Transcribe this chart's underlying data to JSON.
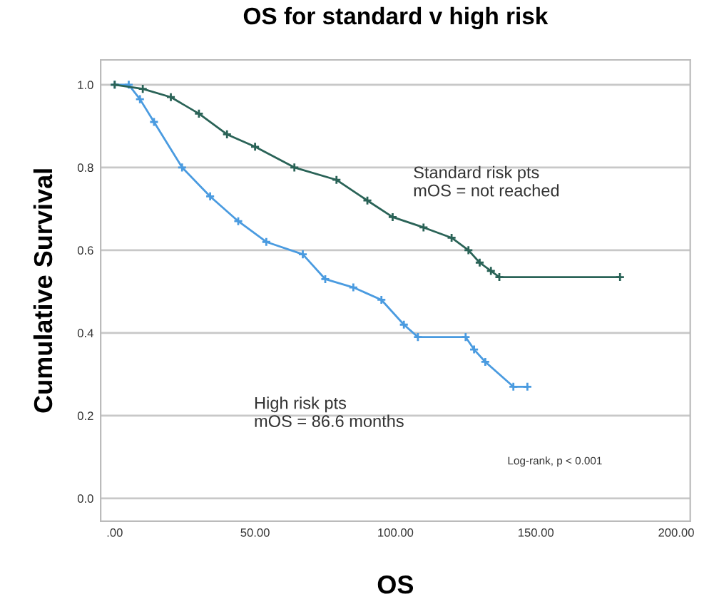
{
  "chart_data": {
    "type": "line",
    "title": "OS for standard v high risk",
    "xlabel": "OS",
    "ylabel": "Cumulative Survival",
    "annotations": [
      "Standard risk pts\nmOS = not reached",
      "High risk pts\nmOS = 86.6 months",
      "Log-rank, p < 0.001"
    ],
    "series": [
      {
        "color": "#2a6357",
        "x": [
          0,
          10,
          20,
          30,
          40,
          50,
          64,
          79,
          90,
          99,
          110,
          120,
          126,
          130,
          134,
          137,
          180
        ],
        "values": [
          1,
          0.99,
          0.97,
          0.93,
          0.88,
          0.85,
          0.8,
          0.77,
          0.72,
          0.68,
          0.655,
          0.63,
          0.6,
          0.57,
          0.55,
          0.535,
          0.535
        ]
      },
      {
        "color": "#4a9be0",
        "x": [
          0,
          5,
          9,
          14,
          24,
          34,
          44,
          54,
          67,
          75,
          85,
          95,
          103,
          108,
          125,
          128,
          132,
          142,
          147
        ],
        "values": [
          1,
          1,
          0.965,
          0.91,
          0.8,
          0.73,
          0.67,
          0.62,
          0.59,
          0.53,
          0.51,
          0.48,
          0.42,
          0.39,
          0.39,
          0.36,
          0.33,
          0.27,
          0.27
        ]
      }
    ],
    "xlim": [
      -5,
      205
    ],
    "ylim": [
      -0.055,
      1.06
    ],
    "xticks": [
      {
        "value": 0,
        "label": ".00"
      },
      {
        "value": 50,
        "label": "50.00"
      },
      {
        "value": 100,
        "label": "100.00"
      },
      {
        "value": 150,
        "label": "150.00"
      },
      {
        "value": 200,
        "label": "200.00"
      }
    ],
    "yticks": [
      {
        "value": 0,
        "label": "0.0"
      },
      {
        "value": 0.2,
        "label": "0.2"
      },
      {
        "value": 0.4,
        "label": "0.4"
      },
      {
        "value": 0.6,
        "label": "0.6"
      },
      {
        "value": 0.8,
        "label": "0.8"
      },
      {
        "value": 1.0,
        "label": "1.0"
      }
    ],
    "grid": "y",
    "marker": "cross",
    "line_style": "solid"
  }
}
